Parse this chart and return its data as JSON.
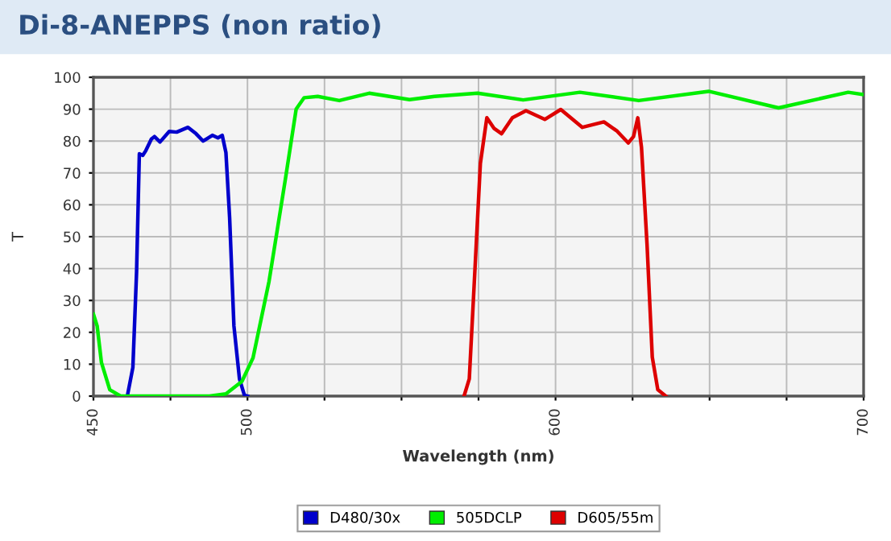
{
  "chart_data": {
    "type": "line",
    "title": "Di-8-ANEPPS (non ratio)",
    "xlabel": "Wavelength (nm)",
    "ylabel": "T",
    "xlim": [
      450,
      700
    ],
    "ylim": [
      0,
      100
    ],
    "xticks": [
      450,
      {
        "value": 475,
        "label": null
      },
      500,
      {
        "value": 525,
        "label": null
      },
      {
        "value": 550,
        "label": null
      },
      {
        "value": 575,
        "label": null
      },
      600,
      {
        "value": 625,
        "label": null
      },
      {
        "value": 650,
        "label": null
      },
      {
        "value": 675,
        "label": null
      },
      700
    ],
    "yticks": [
      0,
      10,
      20,
      30,
      40,
      50,
      60,
      70,
      80,
      90,
      100
    ],
    "grid": true,
    "legend": "bottom",
    "marker": "none",
    "line_style": "solid",
    "series": [
      {
        "name": "D480/30x",
        "color": "#0000cc",
        "x": [
          461,
          462.8,
          464,
          464.9,
          466,
          467,
          468.8,
          469.8,
          471.6,
          474.6,
          477,
          480.7,
          483.3,
          485.6,
          488.6,
          490.4,
          491.8,
          493,
          494.2,
          495.6,
          497.4,
          499,
          500
        ],
        "values": [
          0,
          9,
          39,
          76,
          75.5,
          77,
          80.6,
          81.4,
          79.7,
          83,
          82.8,
          84.3,
          82.3,
          80,
          81.8,
          81,
          81.8,
          76.4,
          56,
          22,
          5.4,
          0.3,
          0
        ]
      },
      {
        "name": "505DCLP",
        "color": "#00ee00",
        "x": [
          450,
          451.2,
          452.6,
          455.3,
          458.8,
          487.7,
          493,
          498.2,
          501.8,
          507,
          512.3,
          515.8,
          518.4,
          522.8,
          529.8,
          539.5,
          552.6,
          560.7,
          574.7,
          589.5,
          607.9,
          627,
          649.7,
          672.4,
          695,
          700
        ],
        "values": [
          25.7,
          22,
          10.5,
          2,
          0,
          0,
          0.7,
          4.6,
          12,
          36,
          68,
          90,
          93.6,
          94,
          92.7,
          95,
          93,
          94,
          95,
          92.9,
          95.3,
          92.7,
          95.6,
          90.4,
          95.3,
          94.6
        ]
      },
      {
        "name": "D605/55m",
        "color": "#dd0000",
        "x": [
          570.3,
          572,
          573.8,
          575.6,
          577.7,
          580,
          582.5,
          586,
          590.4,
          596.5,
          601.7,
          608.7,
          615.7,
          620,
          623.6,
          625.3,
          626.7,
          627.9,
          629.7,
          631.4,
          633.2,
          635.8
        ],
        "values": [
          0,
          5.4,
          39,
          73,
          87.3,
          84,
          82.3,
          87.3,
          89.5,
          86.8,
          89.9,
          84.3,
          86,
          83.1,
          79.4,
          81.4,
          87.3,
          78,
          47.6,
          12.2,
          2,
          0
        ]
      }
    ]
  }
}
